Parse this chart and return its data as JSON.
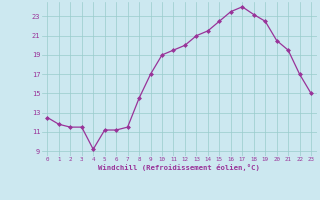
{
  "x": [
    0,
    1,
    2,
    3,
    4,
    5,
    6,
    7,
    8,
    9,
    10,
    11,
    12,
    13,
    14,
    15,
    16,
    17,
    18,
    19,
    20,
    21,
    22,
    23
  ],
  "y": [
    12.5,
    11.8,
    11.5,
    11.5,
    9.2,
    11.2,
    11.2,
    11.5,
    14.5,
    17.0,
    19.0,
    19.5,
    20.0,
    21.0,
    21.5,
    22.5,
    23.5,
    24.0,
    23.2,
    22.5,
    20.5,
    19.5,
    17.0,
    15.0
  ],
  "line_color": "#993399",
  "marker": "D",
  "marker_size": 2,
  "bg_color": "#cce8f0",
  "grid_color": "#99cccc",
  "xlabel": "Windchill (Refroidissement éolien,°C)",
  "xlabel_color": "#993399",
  "tick_color": "#993399",
  "ylim": [
    8.5,
    24.5
  ],
  "xlim": [
    -0.5,
    23.5
  ],
  "yticks": [
    9,
    11,
    13,
    15,
    17,
    19,
    21,
    23
  ],
  "xticks": [
    0,
    1,
    2,
    3,
    4,
    5,
    6,
    7,
    8,
    9,
    10,
    11,
    12,
    13,
    14,
    15,
    16,
    17,
    18,
    19,
    20,
    21,
    22,
    23
  ]
}
